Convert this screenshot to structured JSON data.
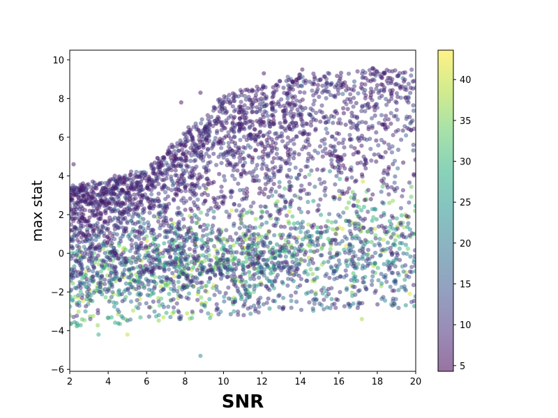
{
  "chart_data": {
    "type": "scatter",
    "title": "",
    "xlabel": "SNR",
    "ylabel": "max stat",
    "xlim": [
      2,
      20
    ],
    "ylim": [
      -6.1,
      10.5
    ],
    "xticks": [
      2,
      4,
      6,
      8,
      10,
      12,
      14,
      16,
      18,
      20
    ],
    "yticks": [
      -6,
      -4,
      -2,
      0,
      2,
      4,
      6,
      8,
      10
    ],
    "grid": false,
    "colormap": "viridis",
    "point_alpha": 0.5,
    "colorbar": {
      "range": [
        4.3,
        43.6
      ],
      "ticks": [
        5,
        10,
        15,
        20,
        25,
        30,
        35,
        40
      ]
    },
    "colormap_stops": [
      "#440154",
      "#472d7b",
      "#3b528b",
      "#2c728e",
      "#21918c",
      "#28ae80",
      "#5ec962",
      "#addc30",
      "#fde725"
    ],
    "density_bands": [
      {
        "x_from": 2,
        "x_to": 6,
        "y_low_from": -3.8,
        "y_low_to": -3.6,
        "y_high_from": 3.5,
        "y_high_to": 4.5,
        "note_color_mean": 14
      },
      {
        "x_from": 6,
        "x_to": 10,
        "y_low_from": -3.6,
        "y_low_to": -3.3,
        "y_high_from": 4.5,
        "y_high_to": 8.3,
        "note_color_mean": 14
      },
      {
        "x_from": 10,
        "x_to": 14,
        "y_low_from": -3.3,
        "y_low_to": -3.0,
        "y_high_from": 8.3,
        "y_high_to": 9.4,
        "note_color_mean": 16
      },
      {
        "x_from": 14,
        "x_to": 20,
        "y_low_from": -3.0,
        "y_low_to": -2.8,
        "y_high_from": 9.4,
        "y_high_to": 9.8,
        "note_color_mean": 18
      }
    ],
    "outliers": [
      {
        "x": 8.8,
        "y": -5.3,
        "c": 22
      },
      {
        "x": 3.5,
        "y": -4.2,
        "c": 28
      },
      {
        "x": 5.0,
        "y": -4.2,
        "c": 40
      },
      {
        "x": 2.2,
        "y": 4.6,
        "c": 6
      },
      {
        "x": 7.8,
        "y": 7.8,
        "c": 6
      },
      {
        "x": 8.8,
        "y": 8.3,
        "c": 6
      },
      {
        "x": 12.1,
        "y": 9.3,
        "c": 6
      },
      {
        "x": 14.1,
        "y": 9.5,
        "c": 6
      },
      {
        "x": 17.2,
        "y": -3.4,
        "c": 38
      },
      {
        "x": 19.7,
        "y": -2.1,
        "c": 42
      }
    ]
  }
}
